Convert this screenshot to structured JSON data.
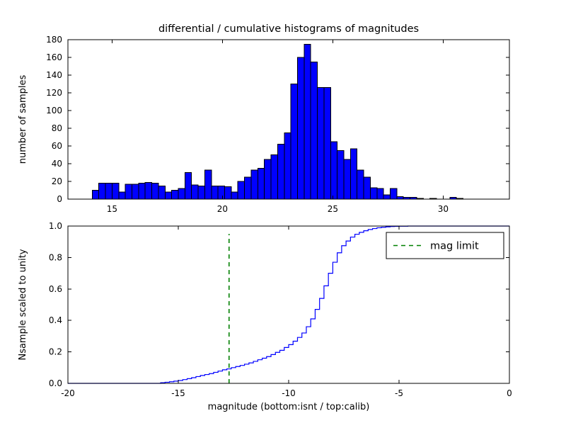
{
  "figure": {
    "background": "#ffffff"
  },
  "chart_data": [
    {
      "type": "bar",
      "name": "differential-histogram",
      "title": "differential / cumulative histograms of magnitudes",
      "ylabel": "number of samples",
      "xlim": [
        13,
        33
      ],
      "ylim": [
        0,
        180
      ],
      "xticks": [
        15,
        20,
        25,
        30
      ],
      "xticklabels": [
        "15",
        "20",
        "25",
        "30"
      ],
      "yticks": [
        0,
        20,
        40,
        60,
        80,
        100,
        120,
        140,
        160,
        180
      ],
      "yticklabels": [
        "0",
        "20",
        "40",
        "60",
        "80",
        "100",
        "120",
        "140",
        "160",
        "180"
      ],
      "grid": false,
      "bar_color": "#0000ff",
      "bar_edge_color": "#000000",
      "bin_start": 14.1,
      "bin_width": 0.3,
      "values": [
        10,
        18,
        18,
        18,
        8,
        17,
        17,
        18,
        19,
        18,
        15,
        8,
        10,
        12,
        30,
        16,
        15,
        33,
        15,
        15,
        14,
        8,
        20,
        25,
        33,
        35,
        45,
        50,
        62,
        75,
        130,
        160,
        175,
        155,
        126,
        126,
        65,
        55,
        45,
        57,
        33,
        25,
        13,
        12,
        5,
        12,
        3,
        2,
        2,
        1,
        0,
        1,
        0,
        0,
        2,
        1,
        0
      ]
    },
    {
      "type": "line",
      "name": "cumulative-histogram",
      "xlabel": "magnitude (bottom:isnt / top:calib)",
      "ylabel": "Nsample scaled to unity",
      "xlim": [
        -20,
        0
      ],
      "ylim": [
        0,
        1
      ],
      "xticks": [
        -20,
        -15,
        -10,
        -5,
        0
      ],
      "xticklabels": [
        "-20",
        "-15",
        "-10",
        "-5",
        "0"
      ],
      "yticks": [
        0,
        0.2,
        0.4,
        0.6,
        0.8,
        1.0
      ],
      "yticklabels": [
        "0.0",
        "0.2",
        "0.4",
        "0.6",
        "0.8",
        "1.0"
      ],
      "grid": false,
      "step": true,
      "line_color": "#0000ff",
      "points": [
        [
          -20,
          0
        ],
        [
          -16,
          0
        ],
        [
          -15.8,
          0.004
        ],
        [
          -15.6,
          0.007
        ],
        [
          -15.4,
          0.01
        ],
        [
          -15.2,
          0.014
        ],
        [
          -15,
          0.018
        ],
        [
          -14.8,
          0.024
        ],
        [
          -14.6,
          0.03
        ],
        [
          -14.4,
          0.036
        ],
        [
          -14.2,
          0.043
        ],
        [
          -14,
          0.05
        ],
        [
          -13.8,
          0.056
        ],
        [
          -13.6,
          0.062
        ],
        [
          -13.4,
          0.07
        ],
        [
          -13.2,
          0.078
        ],
        [
          -13,
          0.086
        ],
        [
          -12.8,
          0.092
        ],
        [
          -12.6,
          0.1
        ],
        [
          -12.4,
          0.107
        ],
        [
          -12.2,
          0.114
        ],
        [
          -12,
          0.122
        ],
        [
          -11.8,
          0.13
        ],
        [
          -11.6,
          0.14
        ],
        [
          -11.4,
          0.15
        ],
        [
          -11.2,
          0.16
        ],
        [
          -11,
          0.17
        ],
        [
          -10.8,
          0.183
        ],
        [
          -10.6,
          0.197
        ],
        [
          -10.4,
          0.21
        ],
        [
          -10.2,
          0.228
        ],
        [
          -10,
          0.246
        ],
        [
          -9.8,
          0.268
        ],
        [
          -9.6,
          0.292
        ],
        [
          -9.4,
          0.32
        ],
        [
          -9.2,
          0.36
        ],
        [
          -9,
          0.41
        ],
        [
          -8.8,
          0.47
        ],
        [
          -8.6,
          0.54
        ],
        [
          -8.4,
          0.62
        ],
        [
          -8.2,
          0.7
        ],
        [
          -8,
          0.77
        ],
        [
          -7.8,
          0.83
        ],
        [
          -7.6,
          0.875
        ],
        [
          -7.4,
          0.905
        ],
        [
          -7.2,
          0.93
        ],
        [
          -7,
          0.948
        ],
        [
          -6.8,
          0.96
        ],
        [
          -6.6,
          0.97
        ],
        [
          -6.4,
          0.978
        ],
        [
          -6.2,
          0.984
        ],
        [
          -6,
          0.989
        ],
        [
          -5.8,
          0.992
        ],
        [
          -5.6,
          0.995
        ],
        [
          -5.4,
          0.997
        ],
        [
          -5.2,
          0.998
        ],
        [
          -5,
          0.999
        ],
        [
          -4.6,
          1
        ],
        [
          0,
          1
        ]
      ],
      "vline": {
        "x": -12.7,
        "y0": 0,
        "y1": 0.95,
        "color": "#008000",
        "style": "dashed",
        "label": "mag limit"
      },
      "legend": {
        "label": "mag limit",
        "position": "upper right",
        "line_color": "#008000",
        "line_style": "dashed"
      }
    }
  ]
}
